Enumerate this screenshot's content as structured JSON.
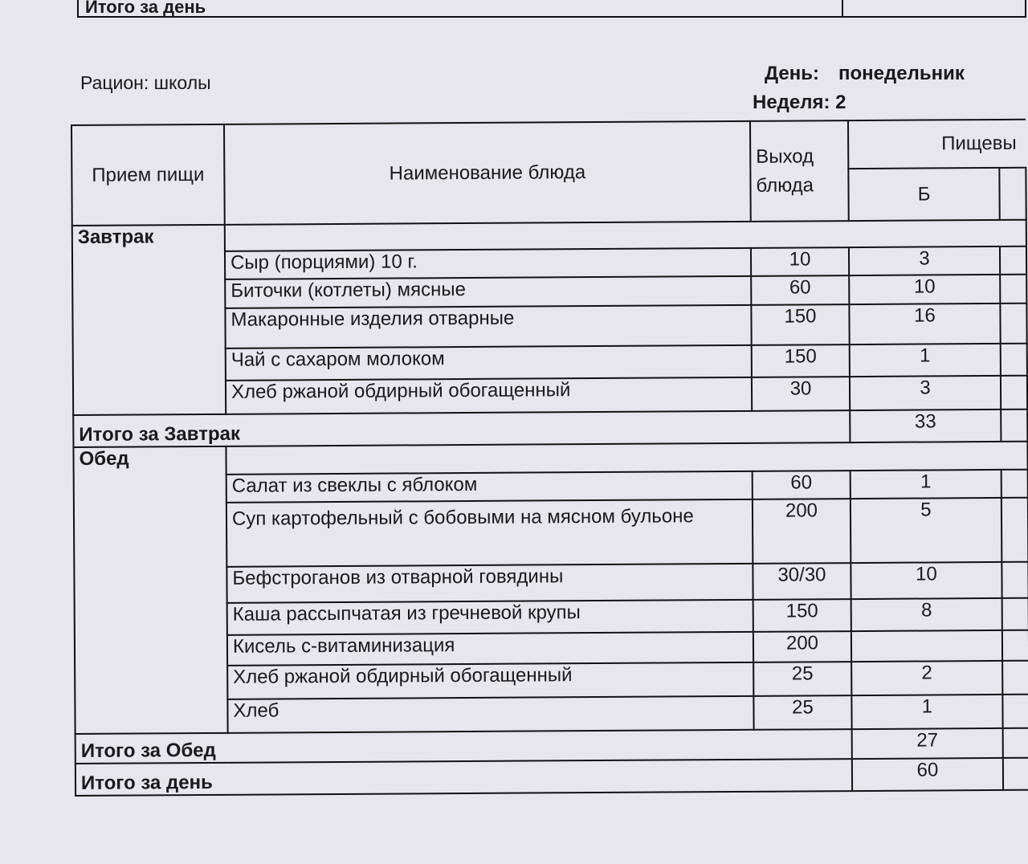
{
  "previous_total_label": "Итого за день",
  "ration": "Рацион: школы",
  "day_label": "День:",
  "day_value": "понедельник",
  "week": "Неделя: 2",
  "headers": {
    "meal": "Прием пищи",
    "dish": "Наименование блюда",
    "output": "Выход блюда",
    "nutrients": "Пищевы",
    "b": "Б"
  },
  "breakfast": {
    "label": "Завтрак",
    "rows": [
      {
        "dish": "Сыр (порциями) 10 г.",
        "output": "10",
        "b": "3"
      },
      {
        "dish": "Биточки (котлеты) мясные",
        "output": "60",
        "b": "10"
      },
      {
        "dish": "Макаронные изделия отварные",
        "output": "150",
        "b": "16"
      },
      {
        "dish": "Чай с сахаром молоком",
        "output": "150",
        "b": "1"
      },
      {
        "dish": "Хлеб ржаной обдирный обогащенный",
        "output": "30",
        "b": "3"
      }
    ],
    "total_label": "Итого за Завтрак",
    "total_b": "33"
  },
  "lunch": {
    "label": "Обед",
    "rows": [
      {
        "dish": "Салат из свеклы с яблоком",
        "output": "60",
        "b": "1"
      },
      {
        "dish": "Суп картофельный с бобовыми на мясном бульоне",
        "output": "200",
        "b": "5"
      },
      {
        "dish": "Бефстроганов из  отварной говядины",
        "output": "30/30",
        "b": "10"
      },
      {
        "dish": "Каша рассыпчатая из гречневой крупы",
        "output": "150",
        "b": "8"
      },
      {
        "dish": "Кисель с-витаминизация",
        "output": "200",
        "b": ""
      },
      {
        "dish": "Хлеб ржаной обдирный обогащенный",
        "output": "25",
        "b": "2"
      },
      {
        "dish": "Хлеб",
        "output": "25",
        "b": "1"
      }
    ],
    "total_label": "Итого за Обед",
    "total_b": "27"
  },
  "day_total_label": "Итого за день",
  "day_total_b": "60"
}
